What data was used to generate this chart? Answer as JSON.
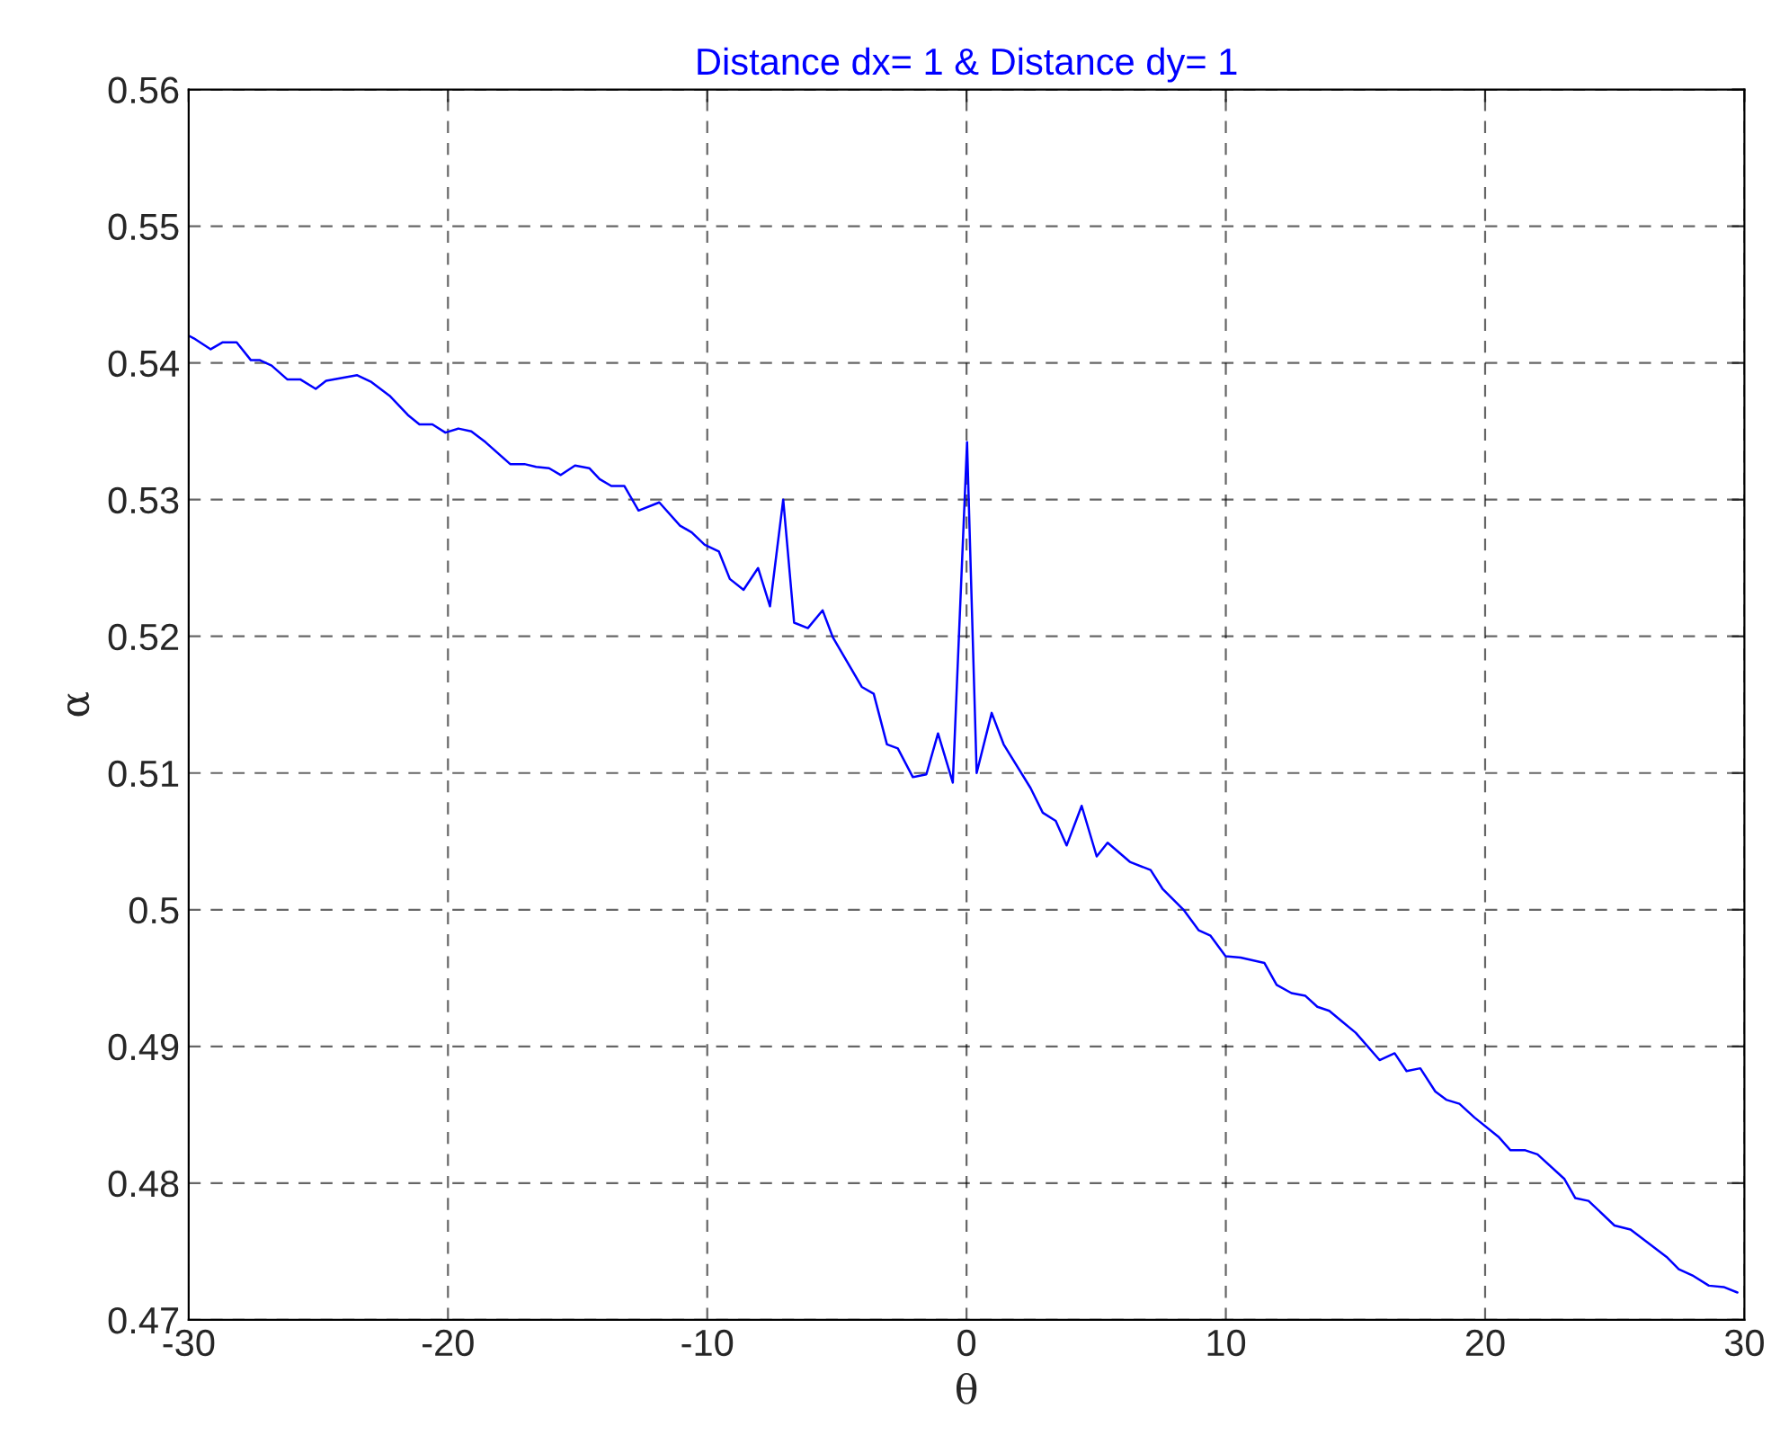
{
  "chart_data": {
    "type": "line",
    "title": "Distance dx= 1 & Distance dy= 1",
    "xlabel": "θ",
    "ylabel": "α",
    "xlim": [
      -30,
      30
    ],
    "xticks": [
      -30,
      -20,
      -10,
      0,
      10,
      20,
      30
    ],
    "ylim": [
      0.47,
      0.56
    ],
    "yticks": [
      0.47,
      0.48,
      0.49,
      0.5,
      0.51,
      0.52,
      0.53,
      0.54,
      0.55,
      0.56
    ],
    "grid": true,
    "line_style": "solid",
    "marker": "none",
    "series": [
      {
        "color": "#0000ff",
        "x": [
          -30,
          -29.8,
          -29.15,
          -28.7,
          -28.15,
          -27.6,
          -27.25,
          -26.8,
          -26.2,
          -25.7,
          -25.1,
          -24.7,
          -23.5,
          -22.95,
          -22.25,
          -21.55,
          -21.1,
          -20.6,
          -20.1,
          -19.6,
          -19.1,
          -18.55,
          -17.6,
          -17.05,
          -16.6,
          -16.1,
          -15.65,
          -15.1,
          -14.55,
          -14.15,
          -13.7,
          -13.2,
          -12.65,
          -11.85,
          -11.05,
          -10.6,
          -10.1,
          -9.55,
          -9.13,
          -8.6,
          -8.04,
          -7.58,
          -7.07,
          -6.65,
          -6.12,
          -5.55,
          -5.15,
          -4.04,
          -3.58,
          -3.07,
          -2.65,
          -2.07,
          -1.55,
          -1.1,
          -0.53,
          0.02,
          0.39,
          0.97,
          1.43,
          2.47,
          2.94,
          3.44,
          3.86,
          4.44,
          5.02,
          5.44,
          6.3,
          7.1,
          7.57,
          8.37,
          8.95,
          9.41,
          9.99,
          10.57,
          11.49,
          11.96,
          12.53,
          13.07,
          13.53,
          13.99,
          14.5,
          15.01,
          15.93,
          16.51,
          16.97,
          17.5,
          18.08,
          18.5,
          19.01,
          19.59,
          20.51,
          20.98,
          21.55,
          22.02,
          23.06,
          23.48,
          23.99,
          24.99,
          25.61,
          27.0,
          27.47,
          28.04,
          28.63,
          29.2,
          29.73
        ],
        "values": [
          0.542,
          0.5418,
          0.541,
          0.5415,
          0.5415,
          0.5402,
          0.5402,
          0.5398,
          0.5388,
          0.5388,
          0.5381,
          0.5387,
          0.5391,
          0.5386,
          0.5376,
          0.5362,
          0.5355,
          0.5355,
          0.5349,
          0.5352,
          0.535,
          0.5342,
          0.5326,
          0.5326,
          0.5324,
          0.5323,
          0.5318,
          0.5325,
          0.5323,
          0.5315,
          0.531,
          0.531,
          0.5292,
          0.5298,
          0.5281,
          0.5276,
          0.5267,
          0.5262,
          0.5242,
          0.5234,
          0.525,
          0.5222,
          0.53,
          0.521,
          0.5206,
          0.5219,
          0.5199,
          0.5163,
          0.5158,
          0.5121,
          0.5118,
          0.5097,
          0.5099,
          0.5129,
          0.5093,
          0.5342,
          0.51,
          0.5144,
          0.5121,
          0.5089,
          0.5071,
          0.5065,
          0.5047,
          0.5076,
          0.5039,
          0.5049,
          0.5035,
          0.5029,
          0.5015,
          0.5,
          0.4985,
          0.4981,
          0.4966,
          0.4965,
          0.4961,
          0.4945,
          0.4939,
          0.4937,
          0.4929,
          0.4926,
          0.4918,
          0.491,
          0.489,
          0.4895,
          0.4882,
          0.4884,
          0.4867,
          0.4861,
          0.4858,
          0.4848,
          0.4834,
          0.4824,
          0.4824,
          0.4821,
          0.4803,
          0.4789,
          0.4787,
          0.4769,
          0.4766,
          0.4746,
          0.4737,
          0.4732,
          0.4725,
          0.4724,
          0.472
        ]
      }
    ]
  }
}
